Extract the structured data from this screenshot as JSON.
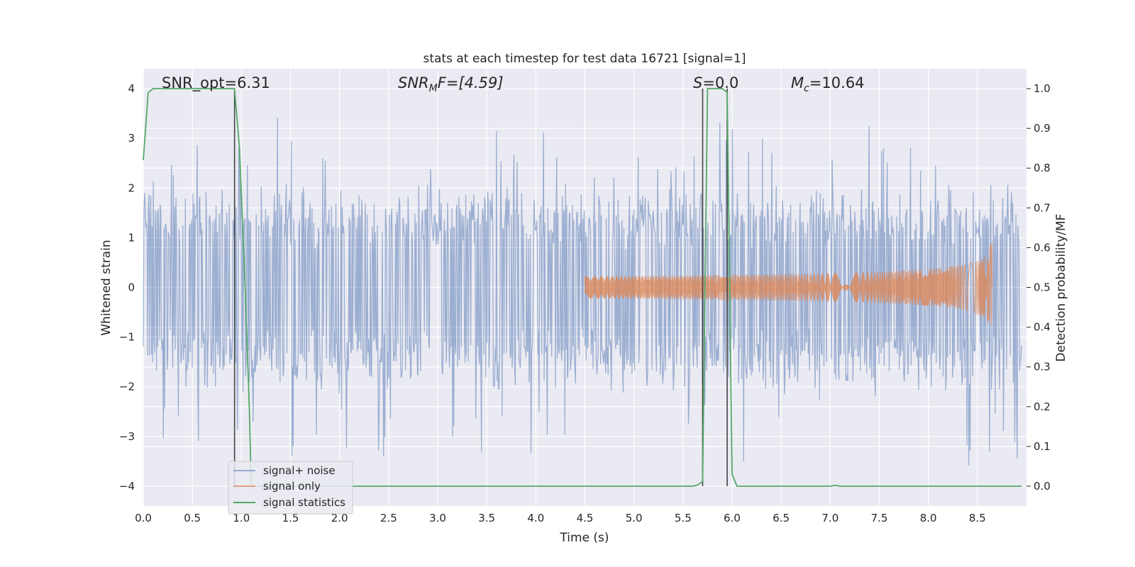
{
  "chart_data": {
    "type": "line",
    "title": "stats at each timestep for test data 16721 [signal=1]",
    "xlabel": "Time (s)",
    "ylabel": "Whitened strain",
    "ylabel_right": "Detection probability/MF",
    "xlim": [
      0.0,
      9.0
    ],
    "ylim": [
      -4.4,
      4.4
    ],
    "ylim_right": [
      -0.05,
      1.05
    ],
    "x_ticks": [
      "0.0",
      "0.5",
      "1.0",
      "1.5",
      "2.0",
      "2.5",
      "3.0",
      "3.5",
      "4.0",
      "4.5",
      "5.0",
      "5.5",
      "6.0",
      "6.5",
      "7.0",
      "7.5",
      "8.0",
      "8.5"
    ],
    "y_ticks": [
      "4",
      "3",
      "2",
      "1",
      "0",
      "−1",
      "−2",
      "−3",
      "−4"
    ],
    "y_ticks_right": [
      "1.0",
      "0.9",
      "0.8",
      "0.7",
      "0.6",
      "0.5",
      "0.4",
      "0.3",
      "0.2",
      "0.1",
      "0.0"
    ],
    "grid": true,
    "legend_position": "lower-left",
    "annotations": {
      "snr_opt": "SNR_opt=6.31",
      "snr_mf_name": "SNR",
      "snr_mf_sub": "M",
      "snr_mf_rest": "F=[4.59]",
      "s_name": "S",
      "s_rest": "=0.0",
      "mc_name": "M",
      "mc_sub": "c",
      "mc_rest": "=10.64"
    },
    "series": [
      {
        "name": "signal+ noise",
        "color": "#4c72b0",
        "description_values": "whitened noise, amplitude roughly within ±4",
        "envelope_amplitude": 2.2,
        "peak_amplitude": 3.8
      },
      {
        "name": "signal only",
        "color": "#dd8452",
        "chirp_start": 4.5,
        "chirp_end": 8.65,
        "chirp_peak_amplitude": 1.0
      },
      {
        "name": "signal statistics",
        "color": "#55a868",
        "x": [
          0.0,
          0.05,
          0.1,
          0.15,
          0.2,
          0.3,
          0.4,
          0.5,
          0.6,
          0.7,
          0.8,
          0.9,
          0.93,
          0.98,
          1.03,
          1.08,
          1.1,
          1.2,
          1.5,
          2.0,
          3.0,
          4.0,
          5.0,
          5.5,
          5.6,
          5.65,
          5.7,
          5.75,
          5.8,
          5.85,
          5.9,
          5.95,
          6.0,
          6.05,
          6.1,
          6.5,
          7.0,
          7.05,
          7.1,
          7.5,
          8.0,
          8.5,
          8.95
        ],
        "y": [
          0.82,
          0.99,
          1.0,
          1.0,
          1.0,
          1.0,
          1.0,
          1.0,
          1.0,
          1.0,
          1.0,
          1.0,
          1.0,
          0.85,
          0.55,
          0.2,
          0.0,
          0.0,
          0.0,
          0.0,
          0.0,
          0.0,
          0.0,
          0.0,
          0.0,
          0.003,
          0.012,
          1.0,
          1.0,
          1.0,
          1.0,
          0.99,
          0.03,
          0.0,
          0.0,
          0.0,
          0.0,
          0.002,
          0.0,
          0.0,
          0.0,
          0.0,
          0.0
        ]
      }
    ],
    "vertical_markers": [
      {
        "x": 0.93,
        "color": "#444444"
      },
      {
        "x": 5.7,
        "color": "#444444"
      },
      {
        "x": 5.95,
        "color": "#444444"
      }
    ]
  }
}
